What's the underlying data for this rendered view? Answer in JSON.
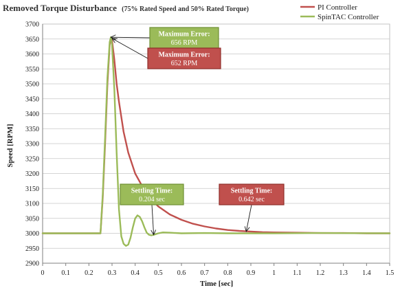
{
  "chart_data": {
    "type": "line",
    "title": "Removed Torque Disturbance",
    "subtitle": "(75% Rated Speed and 50% Rated Torque)",
    "xlabel": "Time [sec]",
    "ylabel": "Speed [RPM]",
    "xlim": [
      0,
      1.5
    ],
    "ylim": [
      2900,
      3700
    ],
    "x_ticks": [
      "0",
      "0.1",
      "0.2",
      "0.3",
      "0.4",
      "0.5",
      "0.6",
      "0.7",
      "0.8",
      "0.9",
      "1",
      "1.1",
      "1.2",
      "1.3",
      "1.4",
      "1.5"
    ],
    "y_ticks": [
      "2900",
      "2950",
      "3000",
      "3050",
      "3100",
      "3150",
      "3200",
      "3250",
      "3300",
      "3350",
      "3400",
      "3450",
      "3500",
      "3550",
      "3600",
      "3650",
      "3700"
    ],
    "grid": "horizontal",
    "legend_position": "top-right",
    "series": [
      {
        "name": "PI Controller",
        "color": "#c0504d",
        "x": [
          0,
          0.1,
          0.2,
          0.25,
          0.26,
          0.27,
          0.28,
          0.29,
          0.295,
          0.3,
          0.31,
          0.32,
          0.33,
          0.35,
          0.37,
          0.4,
          0.45,
          0.5,
          0.55,
          0.6,
          0.65,
          0.7,
          0.75,
          0.8,
          0.85,
          0.9,
          0.95,
          1.0,
          1.1,
          1.2,
          1.3,
          1.4,
          1.5
        ],
        "y": [
          3000,
          3000,
          3000,
          3000,
          3120,
          3300,
          3500,
          3630,
          3652,
          3645,
          3580,
          3500,
          3440,
          3340,
          3270,
          3200,
          3130,
          3090,
          3063,
          3045,
          3032,
          3023,
          3016,
          3011,
          3008,
          3006,
          3004,
          3003,
          3002,
          3001,
          3001,
          3000,
          3000
        ]
      },
      {
        "name": "SpinTAC Controller",
        "color": "#9bbb59",
        "x": [
          0,
          0.1,
          0.2,
          0.25,
          0.26,
          0.27,
          0.28,
          0.29,
          0.295,
          0.3,
          0.31,
          0.32,
          0.33,
          0.34,
          0.35,
          0.36,
          0.37,
          0.38,
          0.39,
          0.4,
          0.41,
          0.42,
          0.43,
          0.44,
          0.45,
          0.46,
          0.47,
          0.48,
          0.5,
          0.52,
          0.55,
          0.6,
          0.7,
          0.8,
          1.0,
          1.2,
          1.5
        ],
        "y": [
          3000,
          3000,
          3000,
          3000,
          3130,
          3320,
          3520,
          3640,
          3656,
          3630,
          3480,
          3270,
          3080,
          2990,
          2965,
          2958,
          2962,
          2985,
          3020,
          3050,
          3060,
          3055,
          3040,
          3020,
          3002,
          2995,
          2993,
          2995,
          3000,
          3003,
          3002,
          3000,
          3001,
          3000,
          3000,
          3001,
          3000
        ]
      }
    ],
    "annotations": [
      {
        "label": "Maximum Error:",
        "value": "656 RPM",
        "color": "#9bbb59",
        "x": 0.295,
        "y": 3656
      },
      {
        "label": "Maximum Error:",
        "value": "652 RPM",
        "color": "#c0504d",
        "x": 0.3,
        "y": 3652
      },
      {
        "label": "Settling Time:",
        "value": "0.204 sec",
        "color": "#9bbb59",
        "x": 0.48,
        "y": 2995
      },
      {
        "label": "Settling Time:",
        "value": "0.642 sec",
        "color": "#c0504d",
        "x": 0.88,
        "y": 3006
      }
    ]
  }
}
